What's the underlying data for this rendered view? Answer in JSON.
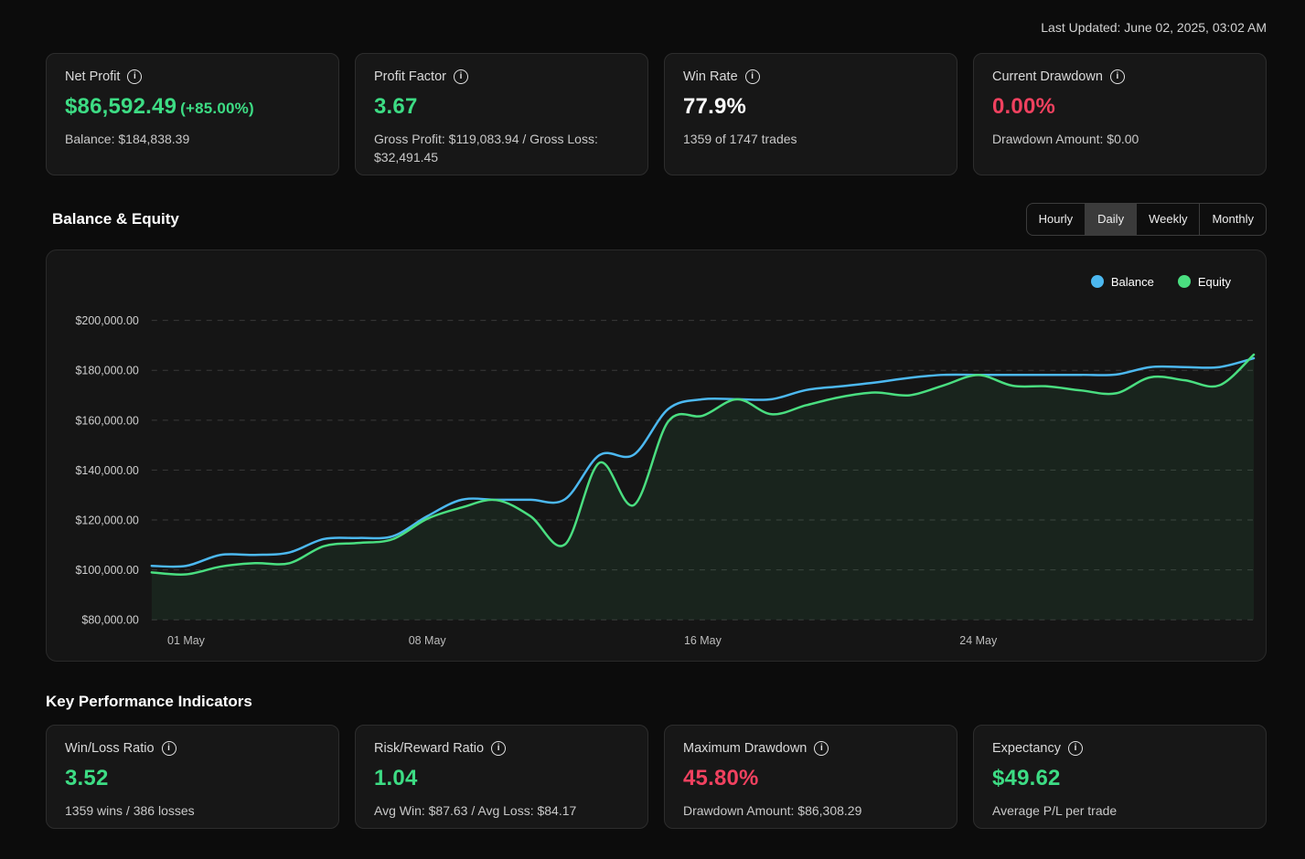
{
  "header": {
    "last_updated": "Last Updated: June 02, 2025, 03:02 AM"
  },
  "colors": {
    "green": "#3ddc84",
    "red": "#f0415f",
    "white": "#ffffff",
    "balance_blue": "#4cb8f0",
    "equity_green": "#4ade80",
    "page_bg": "#0c0c0c",
    "card_bg": "#171717",
    "panel_bg": "#151515",
    "grid_line": "#3a3a3a"
  },
  "stat_cards": [
    {
      "title": "Net Profit",
      "value": "$86,592.49",
      "value_suffix": "(+85.00%)",
      "value_color": "green",
      "subtext": "Balance: $184,838.39"
    },
    {
      "title": "Profit Factor",
      "value": "3.67",
      "value_suffix": "",
      "value_color": "green",
      "subtext": "Gross Profit: $119,083.94 / Gross Loss: $32,491.45"
    },
    {
      "title": "Win Rate",
      "value": "77.9%",
      "value_suffix": "",
      "value_color": "white",
      "subtext": "1359 of 1747 trades"
    },
    {
      "title": "Current Drawdown",
      "value": "0.00%",
      "value_suffix": "",
      "value_color": "red",
      "subtext": "Drawdown Amount: $0.00"
    }
  ],
  "chart_section": {
    "title": "Balance & Equity",
    "range_buttons": [
      {
        "label": "Hourly",
        "active": false
      },
      {
        "label": "Daily",
        "active": true
      },
      {
        "label": "Weekly",
        "active": false
      },
      {
        "label": "Monthly",
        "active": false
      }
    ],
    "legend": [
      {
        "label": "Balance",
        "color": "balance_blue"
      },
      {
        "label": "Equity",
        "color": "equity_green"
      }
    ]
  },
  "chart_data": {
    "type": "line",
    "title": "Balance & Equity",
    "x_unit": "day",
    "dates": [
      "30 Apr",
      "01 May",
      "02 May",
      "03 May",
      "04 May",
      "05 May",
      "06 May",
      "07 May",
      "08 May",
      "09 May",
      "10 May",
      "11 May",
      "12 May",
      "13 May",
      "14 May",
      "15 May",
      "16 May",
      "17 May",
      "18 May",
      "19 May",
      "20 May",
      "21 May",
      "22 May",
      "23 May",
      "24 May",
      "25 May",
      "26 May",
      "27 May",
      "28 May",
      "29 May",
      "30 May",
      "31 May",
      "01 Jun"
    ],
    "x_ticks": [
      {
        "label": "01 May",
        "index": 1
      },
      {
        "label": "08 May",
        "index": 8
      },
      {
        "label": "16 May",
        "index": 16
      },
      {
        "label": "24 May",
        "index": 24
      }
    ],
    "ylim": [
      80000,
      200000
    ],
    "y_ticks": [
      {
        "value": 200000,
        "label": "$200,000.00"
      },
      {
        "value": 180000,
        "label": "$180,000.00"
      },
      {
        "value": 160000,
        "label": "$160,000.00"
      },
      {
        "value": 140000,
        "label": "$140,000.00"
      },
      {
        "value": 120000,
        "label": "$120,000.00"
      },
      {
        "value": 100000,
        "label": "$100,000.00"
      },
      {
        "value": 80000,
        "label": "$80,000.00"
      }
    ],
    "grid": "dashed-horizontal",
    "legend_position": "top-right",
    "series": [
      {
        "name": "Balance",
        "color": "#4cb8f0",
        "values": [
          101600,
          101600,
          106000,
          106000,
          107000,
          112400,
          112800,
          113500,
          121500,
          128100,
          128100,
          128100,
          128300,
          146000,
          146200,
          164500,
          168400,
          168400,
          168400,
          172100,
          173600,
          175100,
          177000,
          178200,
          178200,
          178200,
          178200,
          178200,
          178300,
          181300,
          181300,
          181300,
          184838
        ]
      },
      {
        "name": "Equity",
        "color": "#4ade80",
        "fill": "rgba(74,222,128,0.08)",
        "values": [
          99000,
          98200,
          101300,
          102700,
          102700,
          109500,
          110800,
          112300,
          120500,
          125000,
          128000,
          121500,
          110200,
          142900,
          126000,
          159500,
          161800,
          168400,
          162400,
          166000,
          169300,
          171100,
          170000,
          174000,
          178100,
          173800,
          173600,
          171900,
          170800,
          177200,
          176000,
          174000,
          186300
        ]
      }
    ]
  },
  "kpi_section": {
    "title": "Key Performance Indicators",
    "cards": [
      {
        "title": "Win/Loss Ratio",
        "value": "3.52",
        "value_color": "green",
        "subtext": "1359 wins / 386 losses"
      },
      {
        "title": "Risk/Reward Ratio",
        "value": "1.04",
        "value_color": "green",
        "subtext": "Avg Win: $87.63 / Avg Loss: $84.17"
      },
      {
        "title": "Maximum Drawdown",
        "value": "45.80%",
        "value_color": "red",
        "subtext": "Drawdown Amount: $86,308.29"
      },
      {
        "title": "Expectancy",
        "value": "$49.62",
        "value_color": "green",
        "subtext": "Average P/L per trade"
      }
    ]
  }
}
